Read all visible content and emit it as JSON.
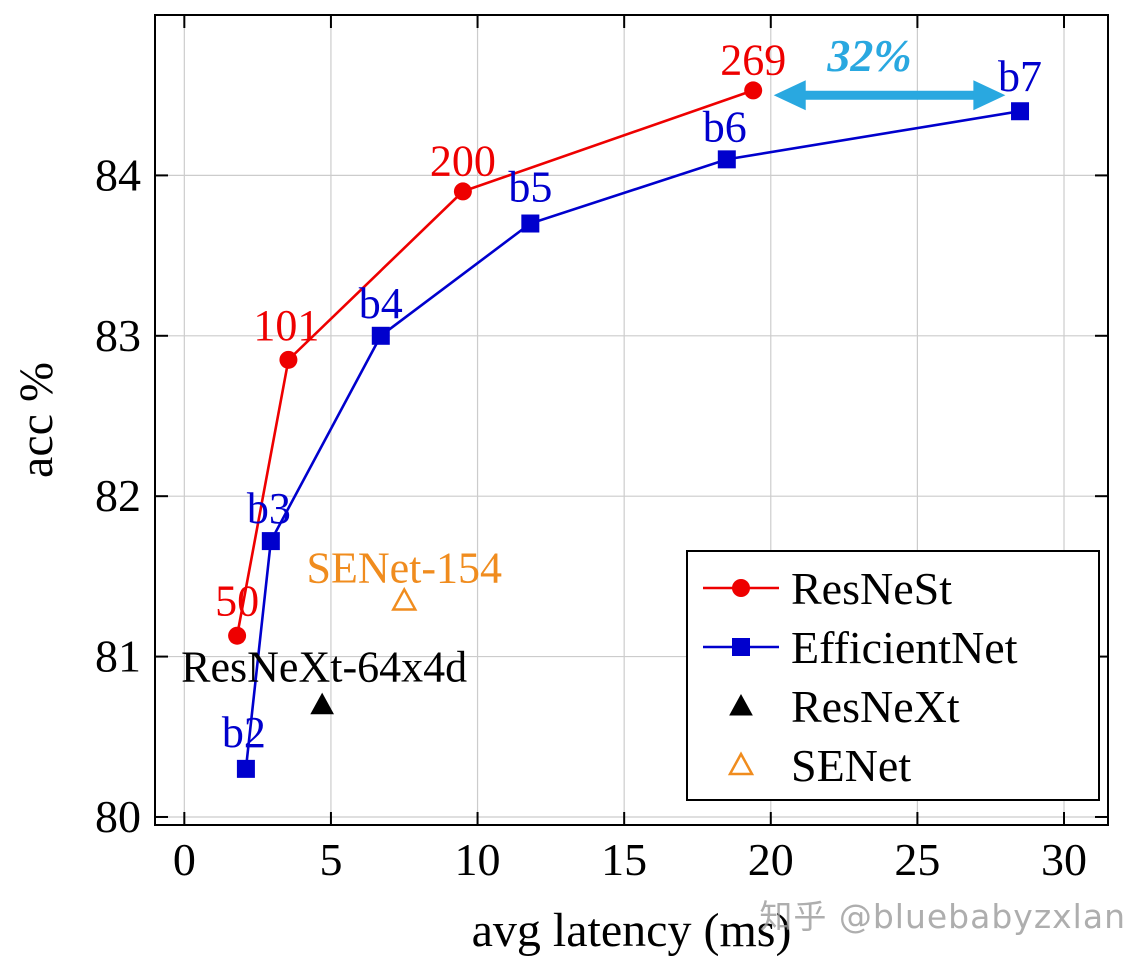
{
  "watermark": "知乎 @bluebabyzxlan",
  "colors": {
    "resnest": "#ee0000",
    "efficientnet": "#0000cd",
    "resnext": "#000000",
    "senet": "#f08c1e",
    "arrow": "#29a8e0",
    "grid": "#cccccc",
    "axis": "#000000"
  },
  "annotation": {
    "text": "32%",
    "x_start": 20.1,
    "x_end": 28.0,
    "y": 84.5,
    "color": "#29a8e0"
  },
  "chart_data": {
    "type": "line",
    "title": "",
    "xlabel": "avg latency (ms)",
    "ylabel": "acc %",
    "xlim": [
      -1,
      31.5
    ],
    "ylim": [
      79.95,
      85.0
    ],
    "x_ticks": [
      0,
      5,
      10,
      15,
      20,
      25,
      30
    ],
    "y_ticks": [
      80,
      81,
      82,
      83,
      84
    ],
    "grid": true,
    "legend_position": "bottom-right",
    "series": [
      {
        "name": "ResNeSt",
        "color": "#ee0000",
        "marker": "circle",
        "filled": true,
        "line": true,
        "points": [
          {
            "x": 1.8,
            "y": 81.13,
            "label": "50",
            "dx": 0,
            "dy": -20,
            "anchor": "middle"
          },
          {
            "x": 3.55,
            "y": 82.85,
            "label": "101",
            "dx": -2,
            "dy": -20,
            "anchor": "middle"
          },
          {
            "x": 9.5,
            "y": 83.9,
            "label": "200",
            "dx": 0,
            "dy": -16,
            "anchor": "middle"
          },
          {
            "x": 19.4,
            "y": 84.53,
            "label": "269",
            "dx": 0,
            "dy": -16,
            "anchor": "middle"
          }
        ]
      },
      {
        "name": "EfficientNet",
        "color": "#0000cd",
        "marker": "square",
        "filled": true,
        "line": true,
        "points": [
          {
            "x": 2.1,
            "y": 80.3,
            "label": "b2",
            "dx": -2,
            "dy": -22,
            "anchor": "middle"
          },
          {
            "x": 2.95,
            "y": 81.72,
            "label": "b3",
            "dx": -2,
            "dy": -18,
            "anchor": "middle"
          },
          {
            "x": 6.7,
            "y": 83.0,
            "label": "b4",
            "dx": 0,
            "dy": -18,
            "anchor": "middle"
          },
          {
            "x": 11.8,
            "y": 83.7,
            "label": "b5",
            "dx": 0,
            "dy": -22,
            "anchor": "middle"
          },
          {
            "x": 18.5,
            "y": 84.1,
            "label": "b6",
            "dx": -2,
            "dy": -18,
            "anchor": "middle"
          },
          {
            "x": 28.5,
            "y": 84.4,
            "label": "b7",
            "dx": 0,
            "dy": -20,
            "anchor": "middle"
          }
        ]
      },
      {
        "name": "ResNeXt",
        "color": "#000000",
        "marker": "triangle",
        "filled": true,
        "line": false,
        "points": [
          {
            "x": 4.7,
            "y": 80.7,
            "label": "ResNeXt-64x4d",
            "dx": 2,
            "dy": -23,
            "anchor": "middle"
          }
        ]
      },
      {
        "name": "SENet",
        "color": "#f08c1e",
        "marker": "triangle",
        "filled": false,
        "line": false,
        "points": [
          {
            "x": 7.5,
            "y": 81.35,
            "label": "SENet-154",
            "dx": 0,
            "dy": -18,
            "anchor": "middle"
          }
        ]
      }
    ]
  }
}
